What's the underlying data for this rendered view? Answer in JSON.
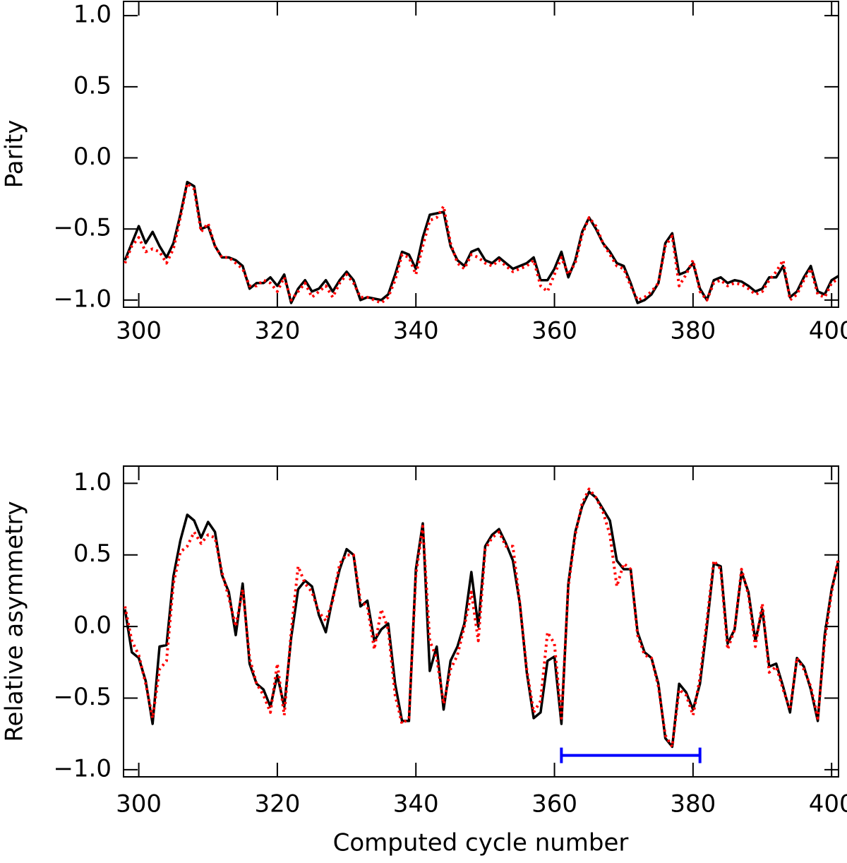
{
  "chart_data": [
    {
      "type": "line",
      "ylabel": "Parity",
      "x": [
        298,
        299,
        300,
        301,
        302,
        303,
        304,
        305,
        306,
        307,
        308,
        309,
        310,
        311,
        312,
        313,
        314,
        315,
        316,
        317,
        318,
        319,
        320,
        321,
        322,
        323,
        324,
        325,
        326,
        327,
        328,
        329,
        330,
        331,
        332,
        333,
        334,
        335,
        336,
        337,
        338,
        339,
        340,
        341,
        342,
        343,
        344,
        345,
        346,
        347,
        348,
        349,
        350,
        351,
        352,
        353,
        354,
        355,
        356,
        357,
        358,
        359,
        360,
        361,
        362,
        363,
        364,
        365,
        366,
        367,
        368,
        369,
        370,
        371,
        372,
        373,
        374,
        375,
        376,
        377,
        378,
        379,
        380,
        381,
        382,
        383,
        384,
        385,
        386,
        387,
        388,
        389,
        390,
        391,
        392,
        393,
        394,
        395,
        396,
        397,
        398,
        399,
        400,
        401
      ],
      "series": [
        {
          "color": "#000000",
          "values": [
            -0.72,
            -0.6,
            -0.48,
            -0.6,
            -0.52,
            -0.62,
            -0.7,
            -0.6,
            -0.4,
            -0.17,
            -0.2,
            -0.5,
            -0.48,
            -0.62,
            -0.7,
            -0.7,
            -0.72,
            -0.76,
            -0.92,
            -0.88,
            -0.88,
            -0.84,
            -0.9,
            -0.82,
            -1.02,
            -0.92,
            -0.86,
            -0.94,
            -0.92,
            -0.86,
            -0.94,
            -0.86,
            -0.8,
            -0.86,
            -1.0,
            -0.98,
            -0.99,
            -1.0,
            -0.96,
            -0.82,
            -0.66,
            -0.68,
            -0.78,
            -0.56,
            -0.4,
            -0.39,
            -0.38,
            -0.62,
            -0.72,
            -0.76,
            -0.66,
            -0.64,
            -0.72,
            -0.74,
            -0.7,
            -0.74,
            -0.78,
            -0.76,
            -0.74,
            -0.7,
            -0.86,
            -0.86,
            -0.78,
            -0.66,
            -0.84,
            -0.72,
            -0.52,
            -0.42,
            -0.5,
            -0.6,
            -0.66,
            -0.74,
            -0.76,
            -0.88,
            -1.02,
            -1.0,
            -0.96,
            -0.88,
            -0.6,
            -0.53,
            -0.82,
            -0.8,
            -0.74,
            -0.92,
            -1.0,
            -0.86,
            -0.84,
            -0.88,
            -0.86,
            -0.87,
            -0.9,
            -0.94,
            -0.92,
            -0.84,
            -0.84,
            -0.76,
            -0.98,
            -0.94,
            -0.84,
            -0.76,
            -0.94,
            -0.96,
            -0.86,
            -0.83
          ]
        },
        {
          "color": "#ff0000",
          "dash": "dotted",
          "values": [
            -0.74,
            -0.62,
            -0.56,
            -0.66,
            -0.64,
            -0.66,
            -0.74,
            -0.64,
            -0.42,
            -0.18,
            -0.22,
            -0.52,
            -0.46,
            -0.62,
            -0.7,
            -0.7,
            -0.74,
            -0.78,
            -0.9,
            -0.9,
            -0.86,
            -0.88,
            -0.94,
            -0.84,
            -1.0,
            -0.94,
            -0.88,
            -0.98,
            -0.94,
            -0.9,
            -0.98,
            -0.88,
            -0.82,
            -0.88,
            -0.98,
            -0.98,
            -1.0,
            -1.02,
            -0.98,
            -0.86,
            -0.68,
            -0.7,
            -0.82,
            -0.62,
            -0.44,
            -0.42,
            -0.34,
            -0.6,
            -0.74,
            -0.78,
            -0.68,
            -0.7,
            -0.74,
            -0.76,
            -0.72,
            -0.76,
            -0.8,
            -0.78,
            -0.76,
            -0.72,
            -0.9,
            -0.94,
            -0.82,
            -0.7,
            -0.82,
            -0.74,
            -0.54,
            -0.42,
            -0.48,
            -0.6,
            -0.68,
            -0.76,
            -0.78,
            -0.9,
            -1.0,
            -0.98,
            -0.94,
            -0.88,
            -0.62,
            -0.55,
            -0.9,
            -0.82,
            -0.72,
            -0.94,
            -1.0,
            -0.88,
            -0.86,
            -0.9,
            -0.88,
            -0.89,
            -0.92,
            -0.96,
            -0.94,
            -0.86,
            -0.8,
            -0.72,
            -1.0,
            -0.96,
            -0.86,
            -0.78,
            -0.96,
            -0.98,
            -0.88,
            -0.85
          ]
        }
      ],
      "xlim": [
        297.8,
        401
      ],
      "xticks": [
        300,
        320,
        340,
        360,
        380,
        400
      ],
      "ylim": [
        -1.05,
        1.1
      ],
      "yticks": [
        {
          "value": -1,
          "label": "−1.0"
        },
        {
          "value": -0.5,
          "label": "−0.5"
        },
        {
          "value": 0,
          "label": "0.0"
        },
        0.5,
        {
          "value": 1,
          "label": "1.0"
        }
      ]
    },
    {
      "type": "line",
      "ylabel": "Relative asymmetry",
      "xlabel": "Computed cycle number",
      "x": [
        298,
        299,
        300,
        301,
        302,
        303,
        304,
        305,
        306,
        307,
        308,
        309,
        310,
        311,
        312,
        313,
        314,
        315,
        316,
        317,
        318,
        319,
        320,
        321,
        322,
        323,
        324,
        325,
        326,
        327,
        328,
        329,
        330,
        331,
        332,
        333,
        334,
        335,
        336,
        337,
        338,
        339,
        340,
        341,
        342,
        343,
        344,
        345,
        346,
        347,
        348,
        349,
        350,
        351,
        352,
        353,
        354,
        355,
        356,
        357,
        358,
        359,
        360,
        361,
        362,
        363,
        364,
        365,
        366,
        367,
        368,
        369,
        370,
        371,
        372,
        373,
        374,
        375,
        376,
        377,
        378,
        379,
        380,
        381,
        382,
        383,
        384,
        385,
        386,
        387,
        388,
        389,
        390,
        391,
        392,
        393,
        394,
        395,
        396,
        397,
        398,
        399,
        400,
        401
      ],
      "series": [
        {
          "color": "#000000",
          "values": [
            0.12,
            -0.18,
            -0.22,
            -0.38,
            -0.68,
            -0.14,
            -0.13,
            0.35,
            0.6,
            0.78,
            0.74,
            0.62,
            0.73,
            0.66,
            0.36,
            0.24,
            -0.06,
            0.3,
            -0.26,
            -0.4,
            -0.44,
            -0.56,
            -0.34,
            -0.56,
            -0.08,
            0.26,
            0.32,
            0.28,
            0.08,
            -0.04,
            0.2,
            0.4,
            0.54,
            0.5,
            0.14,
            0.18,
            -0.1,
            -0.02,
            0.02,
            -0.4,
            -0.66,
            -0.66,
            0.4,
            0.72,
            -0.31,
            -0.14,
            -0.58,
            -0.24,
            -0.14,
            0.02,
            0.38,
            0.0,
            0.56,
            0.64,
            0.68,
            0.58,
            0.46,
            0.16,
            -0.32,
            -0.64,
            -0.6,
            -0.24,
            -0.21,
            -0.68,
            0.3,
            0.66,
            0.84,
            0.94,
            0.9,
            0.82,
            0.74,
            0.46,
            0.4,
            0.4,
            -0.04,
            -0.18,
            -0.22,
            -0.4,
            -0.78,
            -0.84,
            -0.4,
            -0.46,
            -0.58,
            -0.4,
            0.0,
            0.44,
            0.42,
            -0.12,
            -0.02,
            0.38,
            0.24,
            -0.1,
            0.12,
            -0.28,
            -0.26,
            -0.42,
            -0.6,
            -0.22,
            -0.28,
            -0.44,
            -0.66,
            -0.06,
            0.26,
            0.46
          ]
        },
        {
          "color": "#ff0000",
          "dash": "dotted",
          "values": [
            0.14,
            -0.1,
            -0.2,
            -0.4,
            -0.64,
            -0.3,
            -0.24,
            0.3,
            0.52,
            0.56,
            0.66,
            0.58,
            0.64,
            0.62,
            0.38,
            0.2,
            0.0,
            0.26,
            -0.22,
            -0.4,
            -0.48,
            -0.6,
            -0.26,
            -0.62,
            -0.04,
            0.42,
            0.3,
            0.24,
            0.1,
            0.04,
            0.18,
            0.44,
            0.5,
            0.5,
            0.18,
            0.14,
            -0.16,
            0.12,
            -0.02,
            -0.48,
            -0.68,
            -0.64,
            0.36,
            0.7,
            -0.1,
            -0.22,
            -0.54,
            -0.3,
            -0.2,
            0.0,
            0.24,
            -0.1,
            0.54,
            0.62,
            0.66,
            0.56,
            0.56,
            0.16,
            -0.3,
            -0.6,
            -0.52,
            -0.04,
            -0.12,
            -0.64,
            0.28,
            0.64,
            0.86,
            0.96,
            0.9,
            0.8,
            0.64,
            0.28,
            0.44,
            0.4,
            -0.06,
            -0.2,
            -0.22,
            -0.42,
            -0.76,
            -0.84,
            -0.44,
            -0.48,
            -0.62,
            -0.36,
            0.04,
            0.46,
            0.4,
            -0.16,
            -0.02,
            0.4,
            0.22,
            -0.14,
            0.16,
            -0.32,
            -0.28,
            -0.44,
            -0.58,
            -0.22,
            -0.3,
            -0.42,
            -0.64,
            -0.1,
            0.24,
            0.48
          ]
        }
      ],
      "interval": {
        "x": [
          361,
          381
        ],
        "y": -0.9,
        "color": "#0000ff"
      },
      "xlim": [
        297.8,
        401
      ],
      "xticks": [
        300,
        320,
        340,
        360,
        380,
        400
      ],
      "ylim": [
        -1.05,
        1.12
      ],
      "yticks": [
        {
          "value": -1,
          "label": "−1.0"
        },
        {
          "value": -0.5,
          "label": "−0.5"
        },
        {
          "value": 0,
          "label": "0.0"
        },
        0.5,
        {
          "value": 1,
          "label": "1.0"
        }
      ]
    }
  ]
}
